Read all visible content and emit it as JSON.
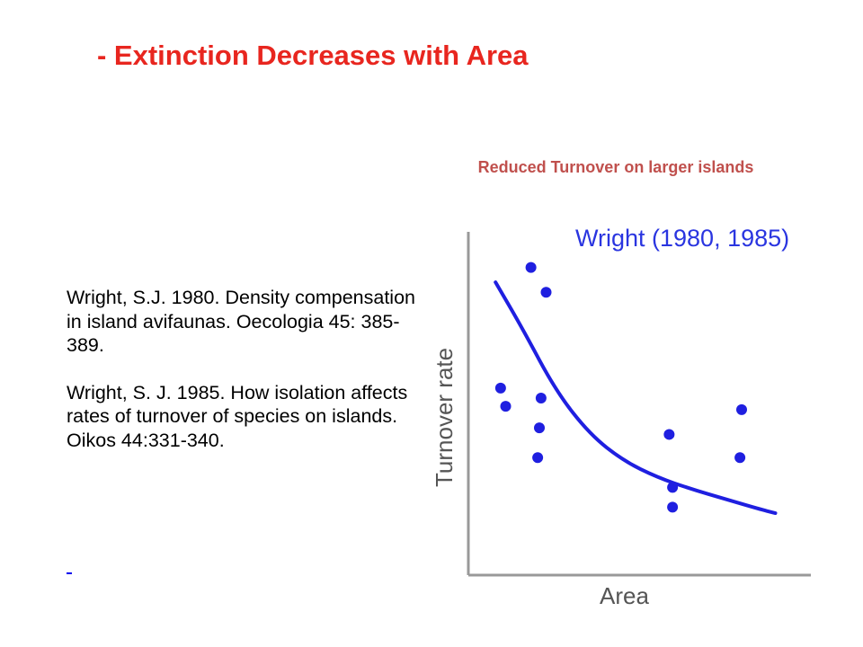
{
  "slide": {
    "title": "- Extinction Decreases with Area",
    "caption": "Reduced Turnover on larger islands",
    "references": [
      "Wright, S.J. 1980. Density compensation in island avifaunas. Oecologia 45: 385-389.",
      "Wright, S. J. 1985. How isolation affects rates of turnover of species on islands. Oikos 44:331-340."
    ],
    "stray_link": " "
  },
  "chart_data": {
    "type": "scatter",
    "title": "Wright (1980, 1985)",
    "xlabel": "Area",
    "ylabel": "Turnover rate",
    "xlim": [
      0,
      10
    ],
    "ylim": [
      0,
      10
    ],
    "ticks": "none",
    "grid": false,
    "legend": "none",
    "colors": {
      "points": "#1f1fe0",
      "curve": "#1f1fe0",
      "title": "#2a35e0",
      "axis_text": "#555555",
      "axes": "#999999"
    },
    "series": [
      {
        "type": "scatter",
        "points": [
          {
            "x": 1.75,
            "y": 9.25
          },
          {
            "x": 2.2,
            "y": 8.5
          },
          {
            "x": 0.85,
            "y": 5.6
          },
          {
            "x": 1.0,
            "y": 5.05
          },
          {
            "x": 2.05,
            "y": 5.3
          },
          {
            "x": 2.0,
            "y": 4.4
          },
          {
            "x": 1.95,
            "y": 3.5
          },
          {
            "x": 5.85,
            "y": 4.2
          },
          {
            "x": 5.95,
            "y": 2.6
          },
          {
            "x": 5.95,
            "y": 2.0
          },
          {
            "x": 8.0,
            "y": 4.95
          },
          {
            "x": 7.95,
            "y": 3.5
          }
        ]
      },
      {
        "type": "line",
        "points": [
          {
            "x": 0.7,
            "y": 8.8
          },
          {
            "x": 1.5,
            "y": 7.4
          },
          {
            "x": 2.5,
            "y": 5.5
          },
          {
            "x": 3.5,
            "y": 4.2
          },
          {
            "x": 4.5,
            "y": 3.4
          },
          {
            "x": 5.5,
            "y": 2.9
          },
          {
            "x": 6.5,
            "y": 2.55
          },
          {
            "x": 7.5,
            "y": 2.25
          },
          {
            "x": 8.5,
            "y": 1.95
          },
          {
            "x": 9.0,
            "y": 1.82
          }
        ]
      }
    ]
  }
}
